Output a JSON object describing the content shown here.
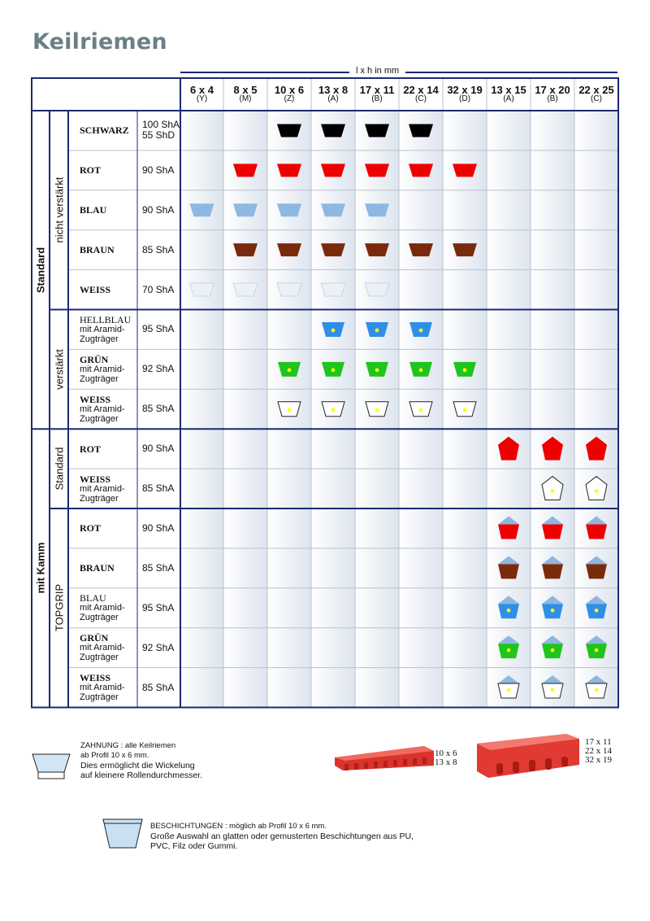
{
  "title": "Keilriemen",
  "dim_label": "l x h in mm",
  "columns": [
    {
      "size": "6 x 4",
      "profile": "(Y)"
    },
    {
      "size": "8 x 5",
      "profile": "(M)"
    },
    {
      "size": "10 x 6",
      "profile": "(Z)"
    },
    {
      "size": "13 x 8",
      "profile": "(A)"
    },
    {
      "size": "17 x 11",
      "profile": "(B)"
    },
    {
      "size": "22 x 14",
      "profile": "(C)"
    },
    {
      "size": "32 x 19",
      "profile": "(D)"
    },
    {
      "size": "13 x 15",
      "profile": "(A)"
    },
    {
      "size": "17 x 20",
      "profile": "(B)"
    },
    {
      "size": "22 x 25",
      "profile": "(C)"
    }
  ],
  "groups": [
    {
      "name": "Standard",
      "row_start": 0,
      "row_end": 7
    },
    {
      "name": "mit Kamm",
      "row_start": 8,
      "row_end": 14
    }
  ],
  "subgroups": [
    {
      "name": "nicht verstärkt",
      "row_start": 0,
      "row_end": 4
    },
    {
      "name": "verstärkt",
      "row_start": 5,
      "row_end": 7
    },
    {
      "name": "Standard",
      "row_start": 8,
      "row_end": 9
    },
    {
      "name": "TOPGRIP",
      "row_start": 10,
      "row_end": 14
    }
  ],
  "rows": [
    {
      "color": "SCHWARZ",
      "sub": "",
      "hardness": "100 ShA\n55 ShD",
      "icon": "trap",
      "fill": "#000000",
      "cols": [
        2,
        3,
        4,
        5
      ]
    },
    {
      "color": "ROT",
      "sub": "",
      "hardness": "90 ShA",
      "icon": "trap",
      "fill": "#ee0000",
      "cols": [
        1,
        2,
        3,
        4,
        5,
        6
      ]
    },
    {
      "color": "BLAU",
      "sub": "",
      "hardness": "90 ShA",
      "icon": "trap",
      "fill": "#8db8e2",
      "cols": [
        0,
        1,
        2,
        3,
        4
      ]
    },
    {
      "color": "BRAUN",
      "sub": "",
      "hardness": "85 ShA",
      "icon": "trap",
      "fill": "#7a2a0c",
      "cols": [
        1,
        2,
        3,
        4,
        5,
        6
      ]
    },
    {
      "color": "WEISS",
      "sub": "",
      "hardness": "70 ShA",
      "icon": "trap-light",
      "fill": "#eaf2f8",
      "cols": [
        0,
        1,
        2,
        3,
        4
      ]
    },
    {
      "color": "HELLBLAU",
      "sub": "mit Aramid-\nZugträger",
      "hardness": "95 ShA",
      "icon": "trap-dot",
      "fill": "#2f8fe8",
      "cols": [
        3,
        4,
        5
      ],
      "color_bold": false
    },
    {
      "color": "GRÜN",
      "sub": "mit Aramid-\nZugträger",
      "hardness": "92 ShA",
      "icon": "trap-dot",
      "fill": "#1fc41f",
      "cols": [
        2,
        3,
        4,
        5,
        6
      ]
    },
    {
      "color": "WEISS",
      "sub": "mit Aramid-\nZugträger",
      "hardness": "85 ShA",
      "icon": "trap-dot-outline",
      "fill": "#ffffff",
      "cols": [
        2,
        3,
        4,
        5,
        6
      ]
    },
    {
      "color": "ROT",
      "sub": "",
      "hardness": "90 ShA",
      "icon": "penta",
      "fill": "#ee0000",
      "cols": [
        7,
        8,
        9
      ]
    },
    {
      "color": "WEISS",
      "sub": "mit Aramid-\nZugträger",
      "hardness": "85 ShA",
      "icon": "penta-outline",
      "fill": "#ffffff",
      "cols": [
        8,
        9
      ]
    },
    {
      "color": "ROT",
      "sub": "",
      "hardness": "90 ShA",
      "icon": "capped",
      "fill": "#ee0000",
      "cols": [
        7,
        8,
        9
      ]
    },
    {
      "color": "BRAUN",
      "sub": "",
      "hardness": "85 ShA",
      "icon": "capped",
      "fill": "#7a2a0c",
      "cols": [
        7,
        8,
        9
      ]
    },
    {
      "color": "BLAU",
      "sub": "mit Aramid-\nZugträger",
      "hardness": "95 ShA",
      "icon": "capped-dot",
      "fill": "#2f8fe8",
      "cols": [
        7,
        8,
        9
      ],
      "color_bold": false
    },
    {
      "color": "GRÜN",
      "sub": "mit Aramid-\nZugträger",
      "hardness": "92 ShA",
      "icon": "capped-dot",
      "fill": "#1fc41f",
      "cols": [
        7,
        8,
        9
      ]
    },
    {
      "color": "WEISS",
      "sub": "mit Aramid-\nZugträger",
      "hardness": "85 ShA",
      "icon": "capped-dot",
      "fill": "#ffffff",
      "cols": [
        7,
        8,
        9
      ]
    }
  ],
  "legend": {
    "zahnung_title": "ZAHNUNG : alle Keilriemen\nab Profil 10 x 6 mm.",
    "zahnung_text": "Dies ermöglicht die Wickelung\nauf kleinere Rollendurchmesser.",
    "belt_small_sizes": "10 x 6\n13 x 8",
    "belt_large_sizes": "17 x 11\n22 x 14\n32 x 19",
    "beschichtung_title": "BESCHICHTUNGEN : möglich ab Profil 10 x 6  mm.",
    "beschichtung_text": "Große Auswahl an glatten oder gemusterten Beschichtungen aus PU,\nPVC, Filz oder Gummi."
  },
  "colors": {
    "border": "#1b2a72",
    "gridline": "#b9c2cc",
    "cap_blue": "#8fb6dd",
    "dot_yellow": "#ffff00",
    "belt_red": "#e03a32"
  }
}
